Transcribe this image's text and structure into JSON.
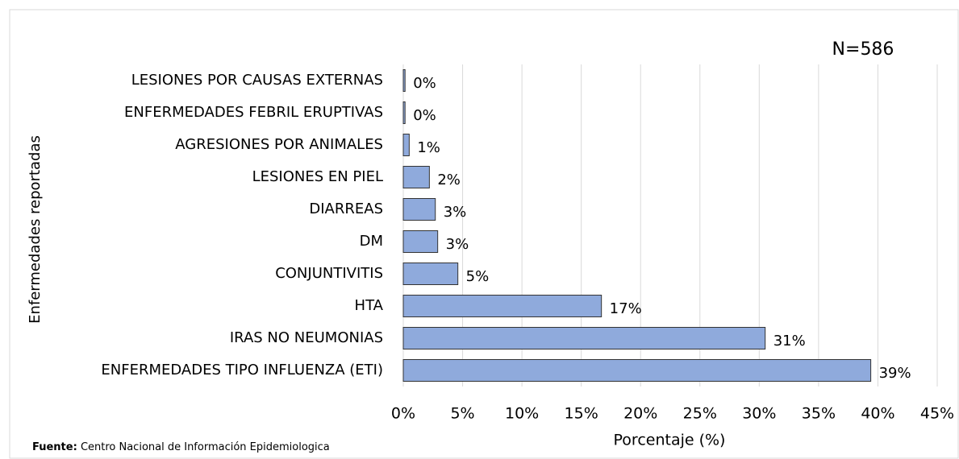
{
  "chart_data": {
    "type": "barh",
    "annotation": "N=586",
    "x_label": "Porcentaje (%)",
    "y_label": "Enfermedades reportadas",
    "source_label": "Fuente:",
    "source_text": "Centro Nacional de Información Epidemiologica",
    "categories": [
      "LESIONES POR CAUSAS EXTERNAS",
      "ENFERMEDADES FEBRIL ERUPTIVAS",
      "AGRESIONES POR ANIMALES",
      "LESIONES EN PIEL",
      "DIARREAS",
      "DM",
      "CONJUNTIVITIS",
      "HTA",
      "IRAS NO NEUMONIAS",
      "ENFERMEDADES TIPO INFLUENZA (ETI)"
    ],
    "values": [
      0.15,
      0.15,
      0.5,
      2.2,
      2.7,
      2.9,
      4.6,
      16.7,
      30.5,
      39.4
    ],
    "value_labels": [
      "0%",
      "0%",
      "1%",
      "2%",
      "3%",
      "3%",
      "5%",
      "17%",
      "31%",
      "39%"
    ],
    "color": "#8faadc",
    "xlim": [
      0,
      45
    ],
    "xticks": [
      {
        "value": 0,
        "label": "0%"
      },
      {
        "value": 5,
        "label": "5%"
      },
      {
        "value": 10,
        "label": "10%"
      },
      {
        "value": 15,
        "label": "15%"
      },
      {
        "value": 20,
        "label": "20%"
      },
      {
        "value": 25,
        "label": "25%"
      },
      {
        "value": 30,
        "label": "30%"
      },
      {
        "value": 35,
        "label": "35%"
      },
      {
        "value": 40,
        "label": "40%"
      },
      {
        "value": 45,
        "label": "45%"
      }
    ],
    "grid": true
  }
}
